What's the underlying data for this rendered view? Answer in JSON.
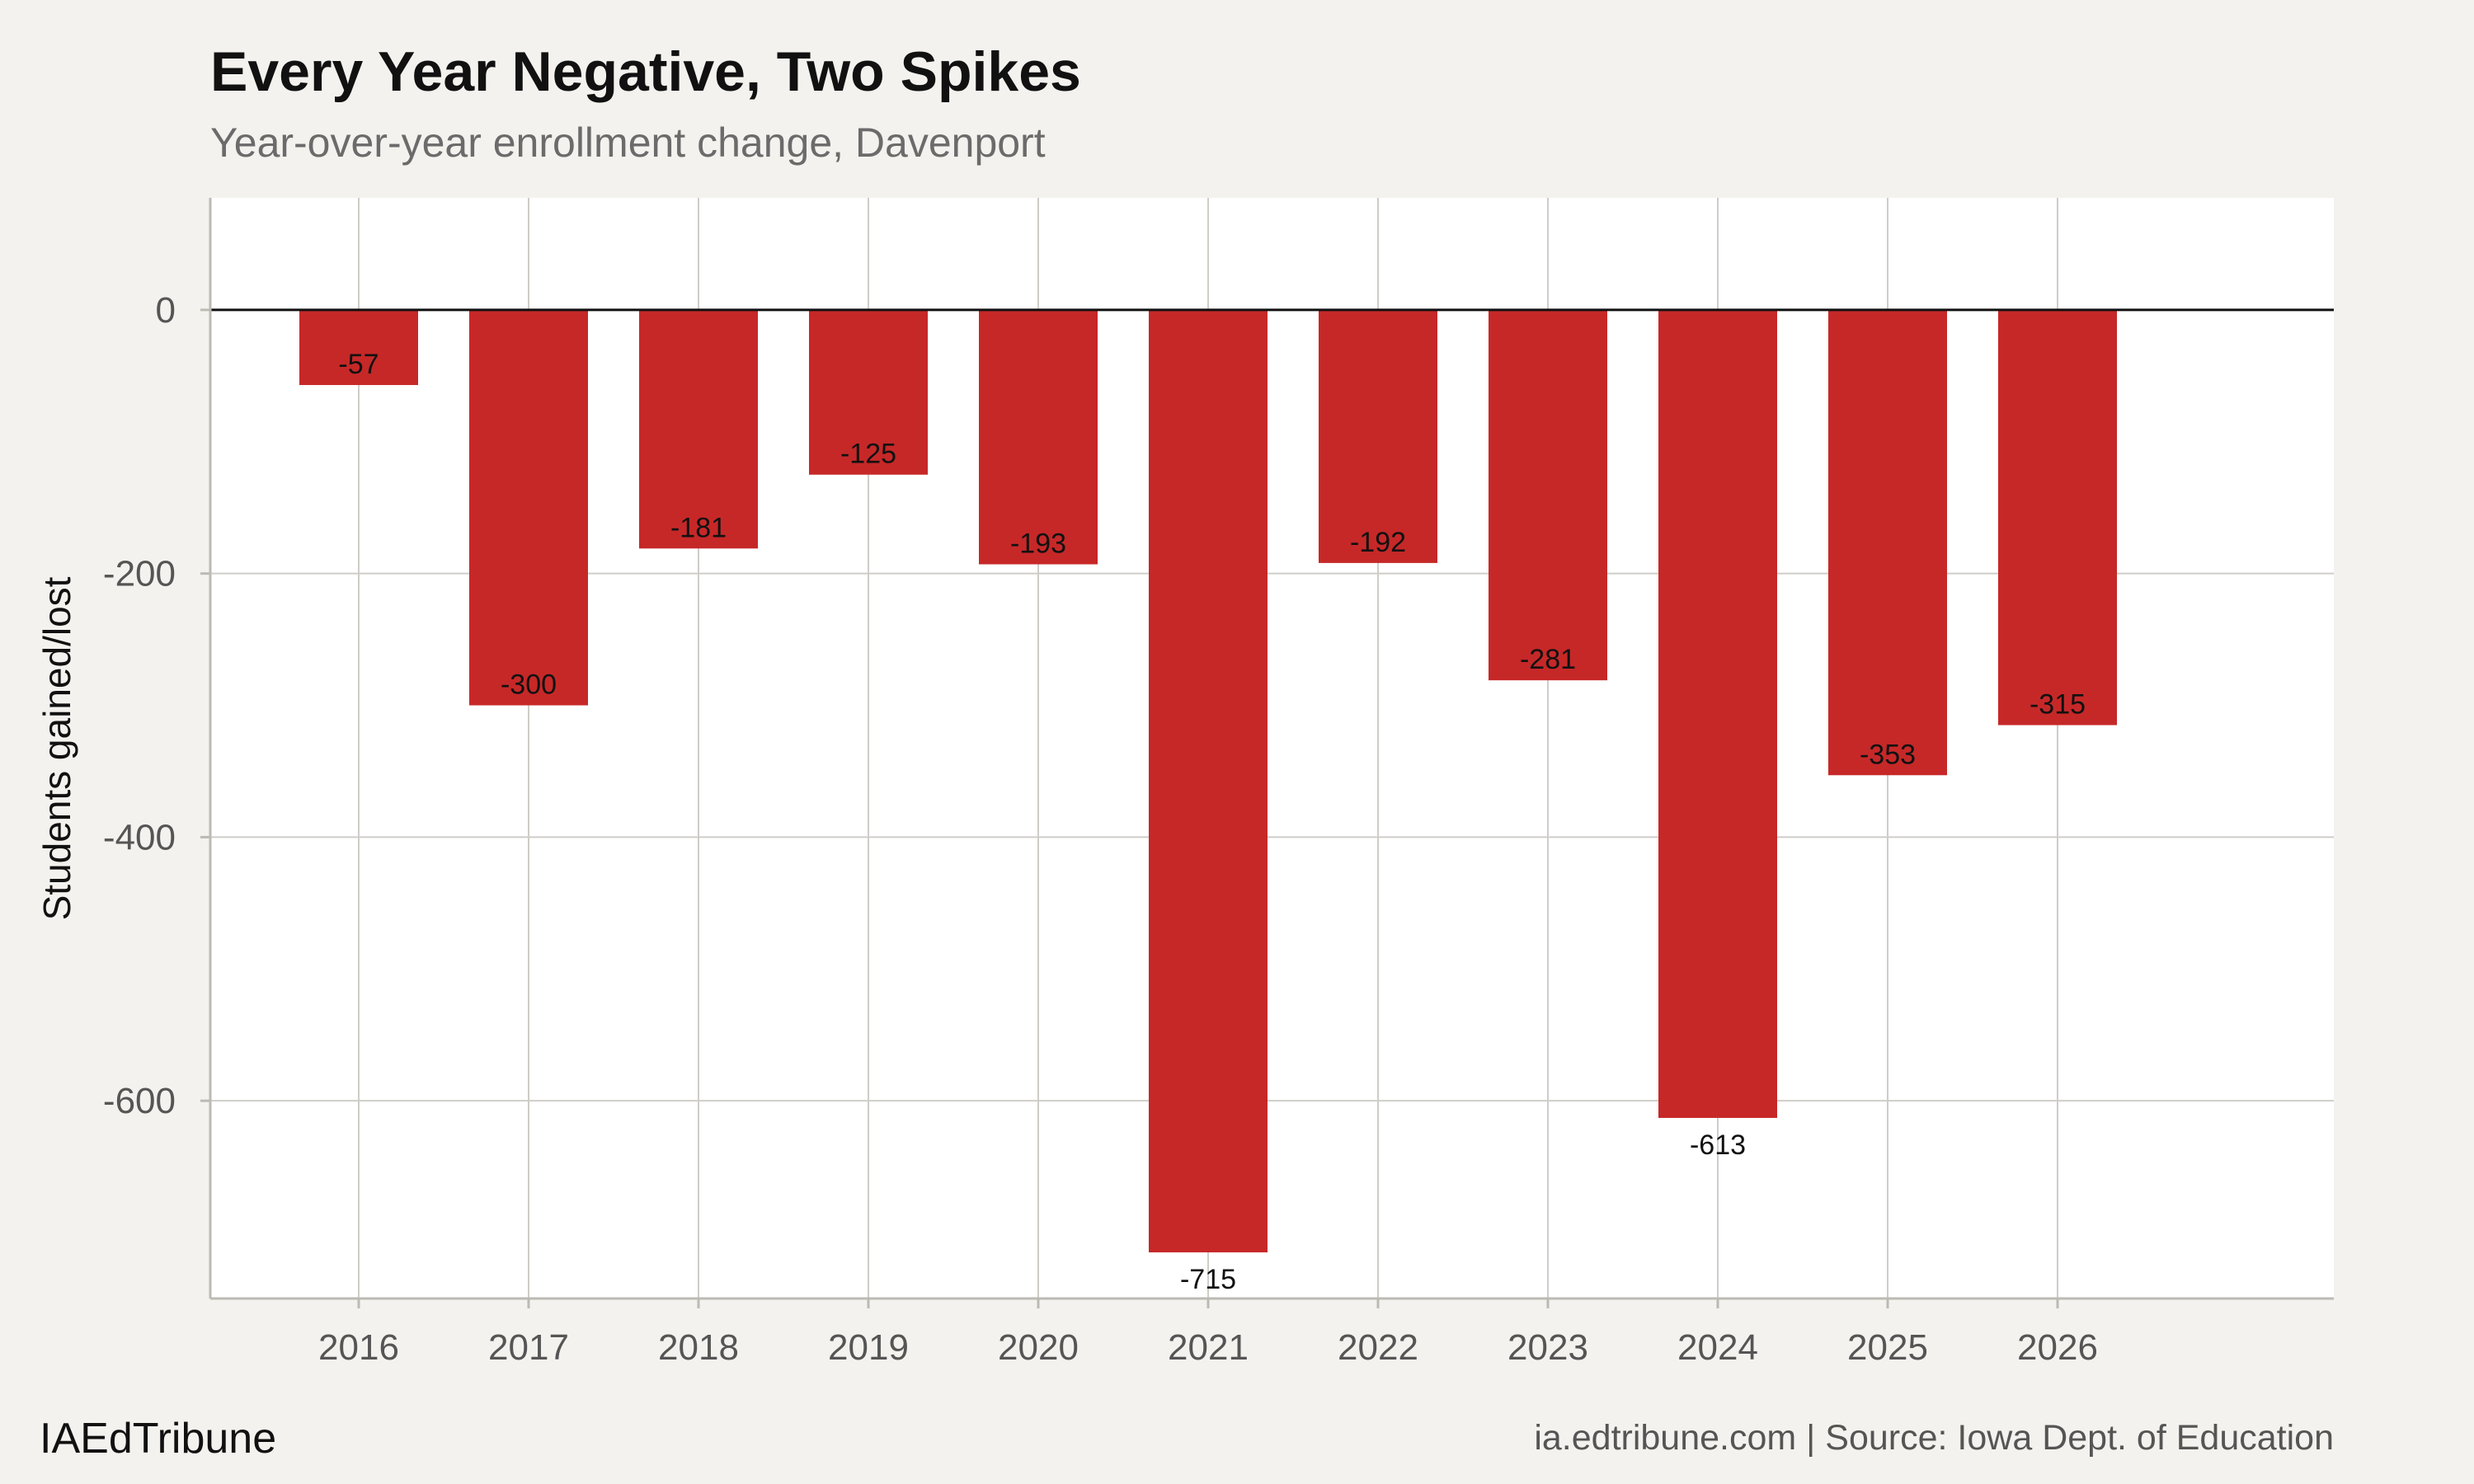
{
  "chart_data": {
    "type": "bar",
    "title": "Every Year Negative, Two Spikes",
    "subtitle": "Year-over-year enrollment change, Davenport",
    "categories": [
      "2016",
      "2017",
      "2018",
      "2019",
      "2020",
      "2021",
      "2022",
      "2023",
      "2024",
      "2025",
      "2026"
    ],
    "values": [
      -57,
      -300,
      -181,
      -125,
      -193,
      -715,
      -192,
      -281,
      -613,
      -353,
      -315
    ],
    "value_labels": [
      "-57",
      "-300",
      "-181",
      "-125",
      "-193",
      "-715",
      "-192",
      "-281",
      "-613",
      "-353",
      "-315"
    ],
    "xlabel": "",
    "ylabel": "Students gained/lost",
    "ylim": [
      -750,
      85
    ],
    "yticks": [
      0,
      -200,
      -400,
      -600
    ],
    "ytick_labels": [
      "0",
      "-200",
      "-400",
      "-600"
    ],
    "grid": true,
    "legend": "none",
    "bar_color": "#c62828",
    "zero_line_color": "#111111"
  },
  "footer": {
    "brand": "IAEdTribune",
    "caption": "ia.edtribune.com | Source: Iowa Dept. of Education"
  }
}
